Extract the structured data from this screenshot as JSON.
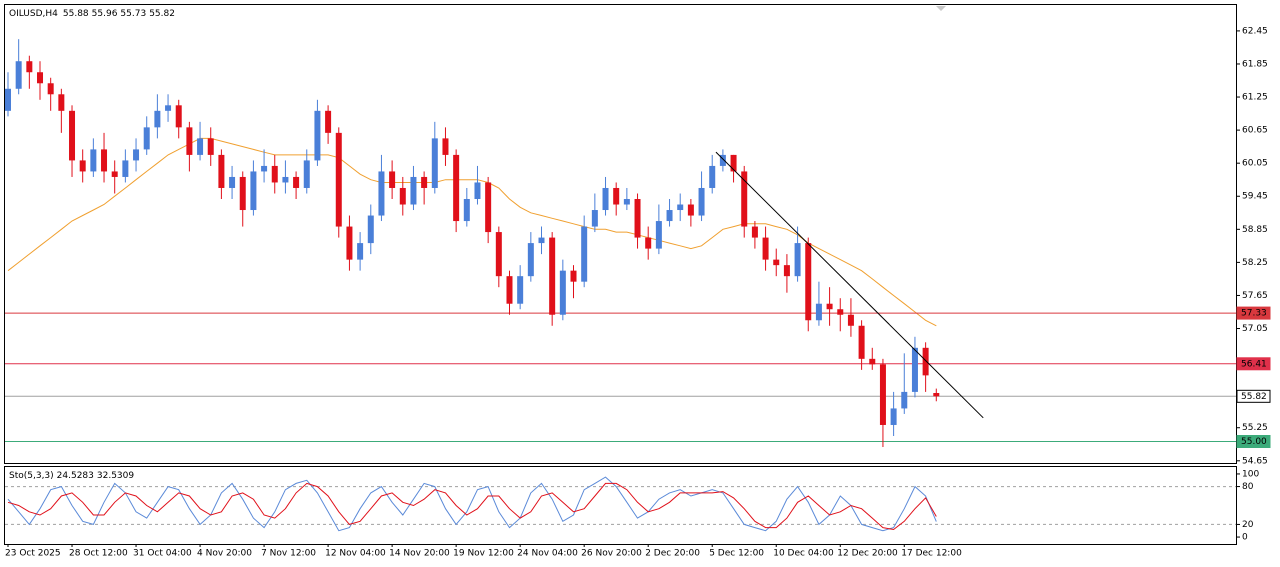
{
  "chart_data": {
    "type": "candlestick",
    "title": "OILUSD,H4",
    "categories": [
      "23 Oct 2025",
      null,
      null,
      null,
      null,
      null,
      "28 Oct 12:00",
      null,
      null,
      null,
      null,
      null,
      "31 Oct 04:00",
      null,
      null,
      null,
      null,
      null,
      "4 Nov 20:00",
      null,
      null,
      null,
      null,
      null,
      "7 Nov 12:00",
      null,
      null,
      null,
      null,
      null,
      "12 Nov 04:00",
      null,
      null,
      null,
      null,
      null,
      "14 Nov 20:00",
      null,
      null,
      null,
      null,
      null,
      "19 Nov 12:00",
      null,
      null,
      null,
      null,
      null,
      "24 Nov 04:00",
      null,
      null,
      null,
      null,
      null,
      "26 Nov 20:00",
      null,
      null,
      null,
      null,
      null,
      "2 Dec 20:00",
      null,
      null,
      null,
      null,
      null,
      "5 Dec 12:00",
      null,
      null,
      null,
      null,
      null,
      "10 Dec 04:00",
      null,
      null,
      null,
      null,
      null,
      "12 Dec 20:00",
      null,
      null,
      null,
      null,
      null,
      "17 Dec 12:00",
      null,
      null,
      null
    ],
    "open": [
      61.0,
      61.4,
      61.9,
      61.7,
      61.5,
      61.3,
      61.0,
      60.1,
      59.9,
      60.3,
      59.9,
      59.8,
      60.1,
      60.3,
      60.7,
      61.0,
      61.1,
      60.7,
      60.2,
      60.5,
      60.2,
      59.6,
      59.8,
      59.2,
      59.9,
      60.0,
      59.7,
      59.8,
      59.6,
      60.1,
      61.0,
      60.6,
      58.9,
      58.3,
      58.6,
      59.1,
      59.9,
      59.6,
      59.3,
      59.8,
      59.6,
      60.5,
      60.2,
      59.0,
      59.4,
      59.7,
      58.8,
      58.0,
      57.5,
      58.0,
      58.6,
      58.7,
      57.3,
      58.1,
      57.9,
      58.9,
      59.2,
      59.6,
      59.3,
      59.4,
      58.7,
      58.5,
      59.0,
      59.2,
      59.3,
      59.1,
      59.6,
      60.0,
      60.2,
      59.9,
      58.9,
      58.7,
      58.3,
      58.2,
      58.0,
      58.6,
      57.2,
      57.5,
      57.4,
      57.3,
      57.1,
      56.5,
      56.4,
      55.3,
      55.6,
      55.9,
      56.7,
      55.88
    ],
    "high": [
      61.7,
      62.3,
      62.0,
      61.9,
      61.6,
      61.4,
      61.1,
      60.3,
      60.5,
      60.6,
      60.1,
      60.3,
      60.5,
      60.9,
      61.3,
      61.3,
      61.2,
      60.8,
      60.8,
      60.7,
      60.3,
      60.0,
      59.9,
      60.1,
      60.3,
      60.2,
      60.1,
      59.9,
      60.3,
      61.2,
      61.1,
      60.7,
      59.1,
      58.8,
      59.3,
      60.2,
      60.1,
      59.8,
      60.0,
      59.9,
      60.8,
      60.7,
      60.3,
      59.6,
      60.0,
      59.8,
      58.9,
      58.1,
      58.2,
      58.8,
      58.9,
      58.8,
      58.3,
      58.2,
      59.1,
      59.5,
      59.8,
      59.7,
      59.6,
      59.5,
      58.9,
      59.3,
      59.4,
      59.5,
      59.4,
      59.9,
      60.2,
      60.3,
      60.2,
      60.0,
      59.0,
      58.9,
      58.5,
      58.4,
      58.9,
      58.7,
      57.9,
      57.8,
      57.6,
      57.6,
      57.2,
      56.7,
      56.5,
      55.9,
      56.6,
      56.9,
      56.8,
      55.96
    ],
    "low": [
      60.9,
      61.3,
      61.4,
      61.2,
      61.0,
      60.6,
      59.8,
      59.7,
      59.8,
      59.7,
      59.5,
      59.7,
      59.9,
      60.2,
      60.5,
      60.8,
      60.5,
      59.9,
      60.1,
      60.0,
      59.4,
      59.4,
      58.9,
      59.1,
      59.7,
      59.5,
      59.5,
      59.4,
      59.5,
      60.0,
      60.4,
      58.7,
      58.1,
      58.1,
      58.4,
      59.0,
      59.4,
      59.1,
      59.2,
      59.3,
      59.5,
      60.0,
      58.8,
      58.9,
      59.3,
      58.6,
      57.8,
      57.3,
      57.4,
      57.9,
      58.4,
      57.1,
      57.2,
      57.6,
      57.8,
      58.8,
      59.1,
      59.1,
      59.2,
      58.5,
      58.3,
      58.4,
      58.9,
      59.0,
      58.9,
      59.0,
      59.5,
      59.9,
      59.7,
      58.7,
      58.5,
      58.1,
      58.0,
      57.7,
      57.9,
      57.0,
      57.1,
      57.1,
      57.0,
      56.9,
      56.3,
      56.3,
      54.9,
      55.1,
      55.5,
      55.8,
      55.9,
      55.73
    ],
    "close": [
      61.4,
      61.9,
      61.7,
      61.5,
      61.3,
      61.0,
      60.1,
      59.9,
      60.3,
      59.9,
      59.8,
      60.1,
      60.3,
      60.7,
      61.0,
      61.1,
      60.7,
      60.2,
      60.5,
      60.2,
      59.6,
      59.8,
      59.2,
      59.9,
      60.0,
      59.7,
      59.8,
      59.6,
      60.1,
      61.0,
      60.6,
      58.9,
      58.3,
      58.6,
      59.1,
      59.9,
      59.6,
      59.3,
      59.8,
      59.6,
      60.5,
      60.2,
      59.0,
      59.4,
      59.7,
      58.8,
      58.0,
      57.5,
      58.0,
      58.6,
      58.7,
      57.3,
      58.1,
      57.9,
      58.9,
      59.2,
      59.6,
      59.3,
      59.4,
      58.7,
      58.5,
      59.0,
      59.2,
      59.3,
      59.1,
      59.6,
      60.0,
      60.2,
      59.9,
      58.9,
      58.7,
      58.3,
      58.2,
      58.0,
      58.6,
      57.2,
      57.5,
      57.4,
      57.3,
      57.1,
      56.5,
      56.4,
      55.3,
      55.6,
      55.9,
      56.7,
      56.2,
      55.82
    ],
    "up_color": "#4a7fd8",
    "down_color": "#e0101a",
    "ylim": [
      54.61,
      62.92
    ],
    "yticks": [
      62.45,
      61.85,
      61.25,
      60.65,
      60.05,
      59.45,
      58.85,
      58.25,
      57.65,
      57.05,
      55.25,
      54.65
    ],
    "moving_average": {
      "color": "#f0a030",
      "values": [
        58.1,
        58.25,
        58.4,
        58.55,
        58.7,
        58.85,
        59.0,
        59.1,
        59.2,
        59.3,
        59.45,
        59.6,
        59.75,
        59.9,
        60.05,
        60.2,
        60.3,
        60.4,
        60.5,
        60.5,
        60.45,
        60.4,
        60.35,
        60.3,
        60.25,
        60.2,
        60.2,
        60.2,
        60.2,
        60.2,
        60.2,
        60.15,
        60.0,
        59.85,
        59.75,
        59.7,
        59.7,
        59.7,
        59.7,
        59.7,
        59.7,
        59.75,
        59.75,
        59.75,
        59.75,
        59.7,
        59.6,
        59.4,
        59.25,
        59.15,
        59.1,
        59.05,
        59.0,
        58.95,
        58.9,
        58.85,
        58.85,
        58.8,
        58.8,
        58.75,
        58.7,
        58.65,
        58.6,
        58.55,
        58.5,
        58.55,
        58.7,
        58.85,
        58.9,
        58.95,
        58.95,
        58.95,
        58.9,
        58.85,
        58.75,
        58.6,
        58.5,
        58.4,
        58.3,
        58.2,
        58.1,
        57.95,
        57.8,
        57.65,
        57.5,
        57.35,
        57.2,
        57.1
      ]
    },
    "levels": [
      {
        "value": 57.33,
        "color": "#d9383e",
        "label_color": "#ffffff"
      },
      {
        "value": 56.41,
        "color": "#e0304a",
        "label_color": "#ffffff"
      },
      {
        "value": 55.82,
        "color": "#a0a0a0",
        "label_color": "#000000"
      },
      {
        "value": 55,
        "label": "55.00",
        "color": "#3cab7a",
        "label_color": "#ffffff"
      }
    ],
    "trendline": {
      "color": "#000000",
      "x": [
        66.35,
        91.4
      ],
      "y": [
        60.25,
        55.43
      ]
    },
    "stochastic": {
      "title": "Sto(5,3,3)",
      "ylim": [
        -11,
        111
      ],
      "yticks": [
        100,
        80,
        20,
        0
      ],
      "main": {
        "color": "#5b8ad8",
        "values": [
          60,
          40,
          20,
          45,
          75,
          80,
          50,
          25,
          20,
          55,
          85,
          70,
          40,
          30,
          55,
          80,
          75,
          45,
          20,
          35,
          70,
          85,
          60,
          30,
          15,
          40,
          75,
          85,
          90,
          70,
          40,
          10,
          15,
          45,
          70,
          80,
          55,
          35,
          60,
          85,
          80,
          45,
          20,
          40,
          75,
          80,
          40,
          15,
          30,
          70,
          85,
          60,
          25,
          35,
          75,
          85,
          95,
          80,
          55,
          30,
          40,
          60,
          70,
          75,
          65,
          70,
          75,
          70,
          45,
          20,
          15,
          10,
          25,
          60,
          80,
          55,
          20,
          35,
          65,
          50,
          20,
          15,
          10,
          15,
          45,
          80,
          65,
          24.5283
        ]
      },
      "signal": {
        "color": "#e0101a",
        "values": [
          55,
          50,
          40,
          35,
          45,
          65,
          70,
          55,
          35,
          35,
          55,
          70,
          65,
          50,
          40,
          55,
          70,
          65,
          45,
          35,
          40,
          65,
          70,
          60,
          35,
          30,
          45,
          70,
          85,
          80,
          65,
          40,
          20,
          25,
          45,
          65,
          70,
          55,
          50,
          60,
          75,
          70,
          50,
          35,
          45,
          65,
          65,
          45,
          30,
          40,
          65,
          70,
          55,
          40,
          45,
          65,
          85,
          85,
          75,
          55,
          40,
          45,
          55,
          70,
          70,
          70,
          70,
          72,
          62,
          45,
          25,
          15,
          15,
          30,
          55,
          65,
          50,
          35,
          40,
          50,
          45,
          30,
          15,
          12,
          25,
          45,
          62,
          32.5309
        ]
      }
    }
  }
}
